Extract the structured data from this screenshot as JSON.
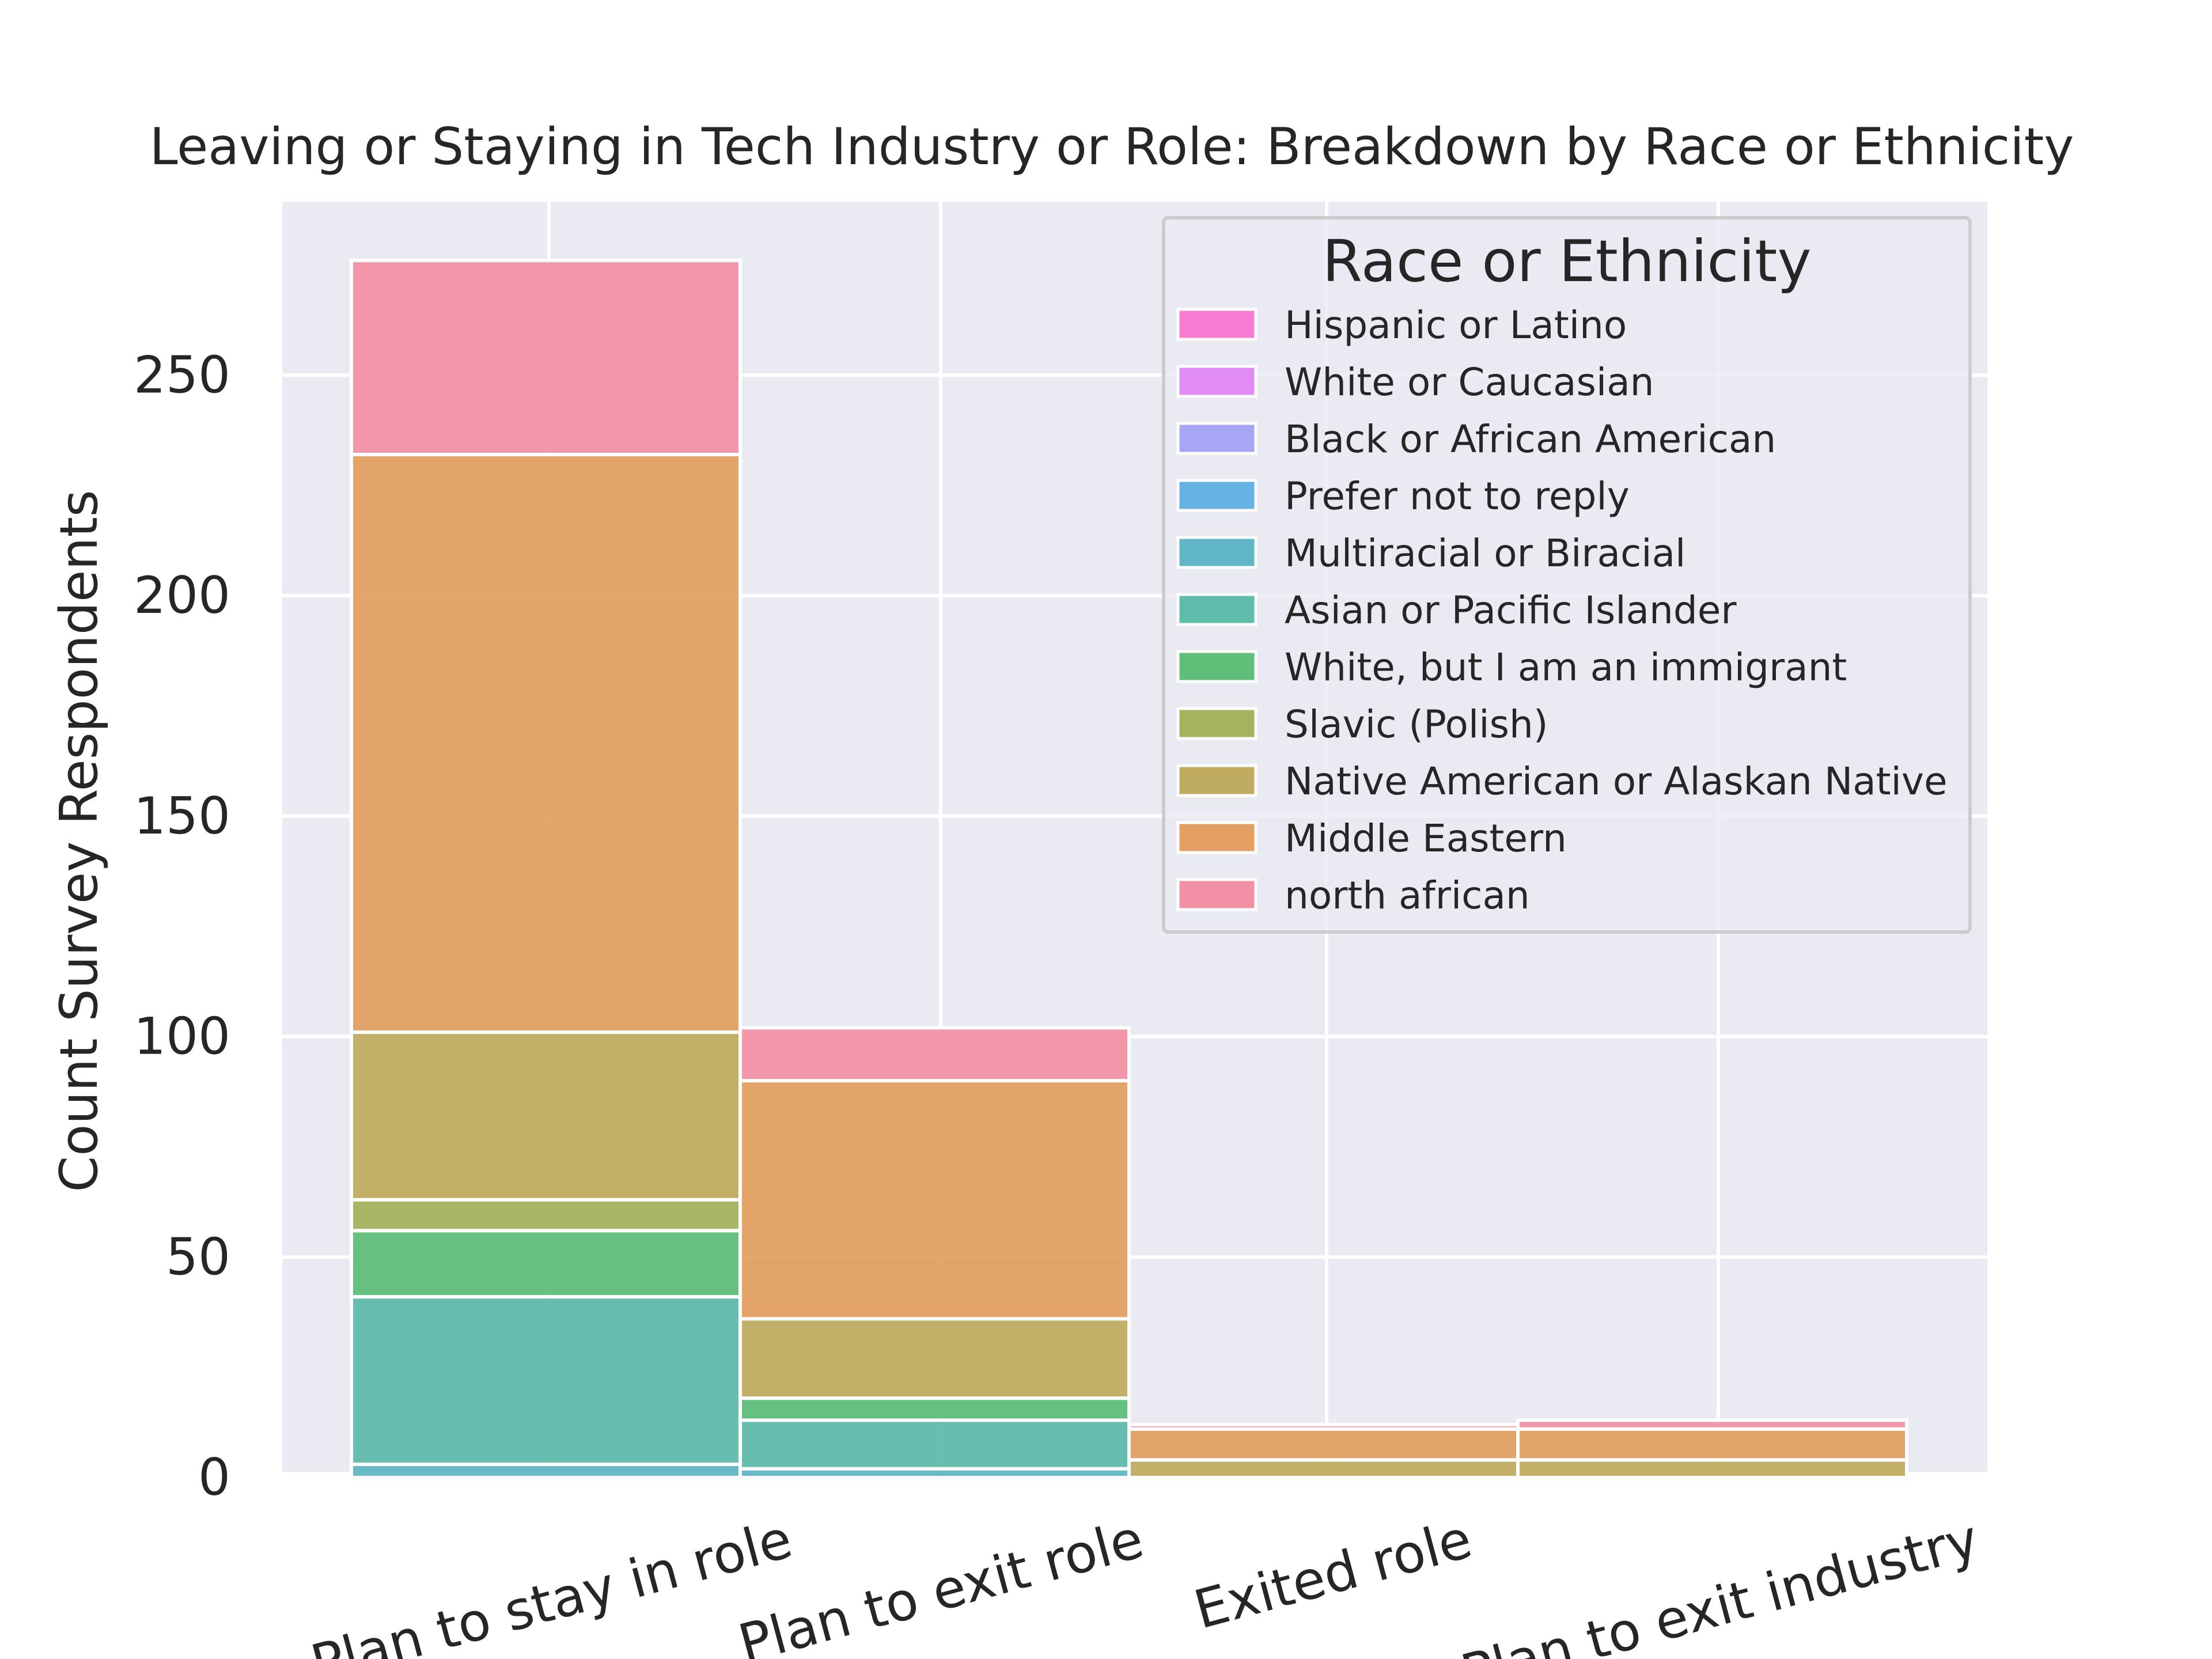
{
  "chart_data": {
    "type": "bar",
    "stacked": true,
    "title": "Leaving or Staying in Tech Industry or Role: Breakdown by Race or Ethnicity",
    "xlabel": "",
    "ylabel": "Count Survey Respondents",
    "ylim": [
      0,
      280
    ],
    "yticks": [
      "0",
      "50",
      "100",
      "150",
      "200",
      "250"
    ],
    "ytick_values": [
      0,
      50,
      100,
      150,
      200,
      250
    ],
    "grid": true,
    "legend": {
      "title": "Race or Ethnicity",
      "placement": "top-right",
      "entries": [
        "Hispanic or Latino",
        "White or Caucasian",
        "Black or African American",
        "Prefer not to reply",
        "Multiracial or Biracial",
        "Asian or Pacific Islander",
        "White, but I am an immigrant",
        "Slavic (Polish)",
        "Native American or Alaskan Native",
        "Middle Eastern",
        "north african"
      ]
    },
    "categories": [
      "Plan to stay in role",
      "Plan to exit role",
      "Exited role",
      "Plan to exit industry"
    ],
    "series": [
      {
        "name": "Hispanic or Latino",
        "color": "#f77bd3",
        "values": [
          0,
          0,
          0,
          0
        ]
      },
      {
        "name": "White or Caucasian",
        "color": "#e08cf4",
        "values": [
          0,
          0,
          0,
          0
        ]
      },
      {
        "name": "Black or African American",
        "color": "#a6a6f4",
        "values": [
          0,
          0,
          0,
          0
        ]
      },
      {
        "name": "Prefer not to reply",
        "color": "#66b2e4",
        "values": [
          0,
          0,
          0,
          0
        ]
      },
      {
        "name": "Multiracial or Biracial",
        "color": "#60b6c4",
        "values": [
          3,
          2,
          0,
          0
        ]
      },
      {
        "name": "Asian or Pacific Islander",
        "color": "#60bcaa",
        "values": [
          38,
          11,
          0,
          0
        ]
      },
      {
        "name": "White, but I am an immigrant",
        "color": "#5fbe78",
        "values": [
          15,
          5,
          0,
          0
        ]
      },
      {
        "name": "Slavic (Polish)",
        "color": "#a4b35e",
        "values": [
          7,
          0,
          0,
          0
        ]
      },
      {
        "name": "Native American or Alaskan Native",
        "color": "#c0ac60",
        "values": [
          38,
          18,
          4,
          4
        ]
      },
      {
        "name": "Middle Eastern",
        "color": "#e3a062",
        "values": [
          131,
          54,
          7,
          7
        ]
      },
      {
        "name": "north african",
        "color": "#f291a5",
        "values": [
          44,
          12,
          1,
          2
        ]
      }
    ]
  }
}
